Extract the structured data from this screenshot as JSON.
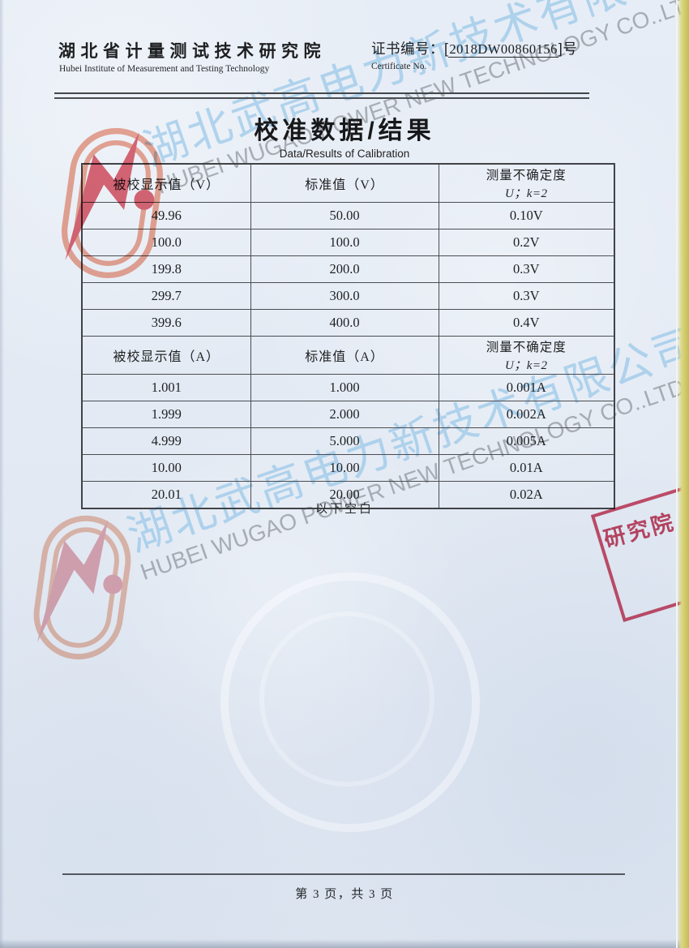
{
  "header": {
    "institute_cn": "湖北省计量测试技术研究院",
    "institute_en": "Hubei Institute of Measurement and Testing Technology",
    "cert_label_cn": "证书编号：",
    "cert_bracket_open": "[",
    "cert_no": "2018DW00860156",
    "cert_bracket_close": "]",
    "cert_suffix": "号",
    "cert_label_en": "Certificate No."
  },
  "title": {
    "cn": "校准数据/结果",
    "en": "Data/Results of Calibration"
  },
  "table": {
    "sections": [
      {
        "col1_header": "被校显示值（V）",
        "col2_header": "标准值（V）",
        "uncertainty_line1": "测量不确定度",
        "uncertainty_line2": "U；k=2",
        "rows": [
          [
            "49.96",
            "50.00",
            "0.10V"
          ],
          [
            "100.0",
            "100.0",
            "0.2V"
          ],
          [
            "199.8",
            "200.0",
            "0.3V"
          ],
          [
            "299.7",
            "300.0",
            "0.3V"
          ],
          [
            "399.6",
            "400.0",
            "0.4V"
          ]
        ]
      },
      {
        "col1_header": "被校显示值（A）",
        "col2_header": "标准值（A）",
        "uncertainty_line1": "测量不确定度",
        "uncertainty_line2": "U；k=2",
        "rows": [
          [
            "1.001",
            "1.000",
            "0.001A"
          ],
          [
            "1.999",
            "2.000",
            "0.002A"
          ],
          [
            "4.999",
            "5.000",
            "0.005A"
          ],
          [
            "10.00",
            "10.00",
            "0.01A"
          ],
          [
            "20.01",
            "20.00",
            "0.02A"
          ]
        ]
      }
    ],
    "below_blank": "以下空白"
  },
  "watermark": {
    "cn": "湖北武高电力新技术有限公司",
    "en": "HUBEI WUGAO POWER NEW TECHNOLOGY CO..LTD",
    "cn_color": "#88c0e6",
    "en_color": "#80858d"
  },
  "stamp": {
    "text": "研究院",
    "color": "#cf3a58"
  },
  "logo": {
    "bolt_color_top": "#dd4f5e",
    "ring_color_top": "#ef9a82",
    "bolt_color_mid": "#e59aa4",
    "ring_color_mid": "#efb39b"
  },
  "footer": {
    "page_info": "第 3 页，共 3 页"
  }
}
